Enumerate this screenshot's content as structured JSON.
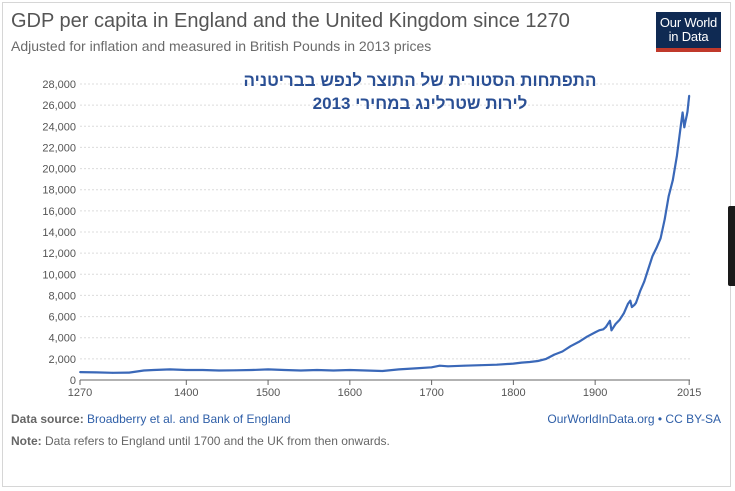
{
  "header": {
    "title": "GDP per capita in England and the United Kingdom since 1270",
    "subtitle": "Adjusted for inflation and measured in British Pounds in 2013 prices"
  },
  "logo": {
    "line1": "Our World",
    "line2": "in Data"
  },
  "annotation": {
    "line1": "התפתחות הסטורית של התוצר לנפש בבריטניה",
    "line2": "לירות שטרלינג במחירי 2013"
  },
  "footer": {
    "source_label": "Data source:",
    "source_text": "Broadberry et al. and Bank of England",
    "license": "OurWorldInData.org • CC BY-SA",
    "note_label": "Note:",
    "note_text": "Data refers to England until 1700 and the UK from then onwards."
  },
  "colors": {
    "line": "#3a68b8",
    "grid": "#dcdcdc",
    "axis": "#666666",
    "logo_bg": "#0f2a53",
    "logo_bar": "#c0392b"
  },
  "chart_data": {
    "type": "line",
    "title": "GDP per capita in England and the United Kingdom since 1270",
    "subtitle": "Adjusted for inflation and measured in British Pounds in 2013 prices",
    "xlim": [
      1270,
      2016
    ],
    "ylim": [
      0,
      28000
    ],
    "x_ticks": [
      1270,
      1400,
      1500,
      1600,
      1700,
      1800,
      1900,
      2015
    ],
    "y_ticks": [
      0,
      2000,
      4000,
      6000,
      8000,
      10000,
      12000,
      14000,
      16000,
      18000,
      20000,
      22000,
      24000,
      26000,
      28000
    ],
    "y_tick_labels": [
      "0",
      "2,000",
      "4,000",
      "6,000",
      "8,000",
      "10,000",
      "12,000",
      "14,000",
      "16,000",
      "18,000",
      "20,000",
      "22,000",
      "24,000",
      "26,000",
      "28,000"
    ],
    "grid": "horizontal",
    "series": [
      {
        "x": [
          1270,
          1290,
          1310,
          1330,
          1348,
          1360,
          1380,
          1400,
          1420,
          1440,
          1460,
          1480,
          1500,
          1520,
          1540,
          1560,
          1580,
          1600,
          1620,
          1640,
          1660,
          1680,
          1700,
          1710,
          1720,
          1740,
          1760,
          1780,
          1800,
          1810,
          1820,
          1830,
          1840,
          1850,
          1860,
          1870,
          1880,
          1890,
          1900,
          1905,
          1910,
          1913,
          1918,
          1920,
          1925,
          1930,
          1935,
          1940,
          1943,
          1945,
          1948,
          1950,
          1955,
          1960,
          1965,
          1970,
          1975,
          1980,
          1985,
          1990,
          1995,
          2000,
          2005,
          2007,
          2009,
          2010,
          2012,
          2013,
          2014,
          2015
        ],
        "y": [
          750,
          720,
          680,
          700,
          900,
          950,
          1000,
          950,
          950,
          900,
          920,
          950,
          1000,
          950,
          900,
          950,
          900,
          950,
          900,
          850,
          1000,
          1100,
          1200,
          1350,
          1300,
          1350,
          1400,
          1450,
          1550,
          1650,
          1700,
          1800,
          2000,
          2400,
          2700,
          3200,
          3600,
          4100,
          4500,
          4700,
          4800,
          5000,
          5600,
          4700,
          5300,
          5700,
          6300,
          7200,
          7500,
          6900,
          7100,
          7300,
          8400,
          9300,
          10500,
          11700,
          12500,
          13400,
          15200,
          17400,
          18900,
          21200,
          24200,
          25300,
          23900,
          24300,
          25000,
          25400,
          26200,
          26900
        ]
      }
    ]
  }
}
